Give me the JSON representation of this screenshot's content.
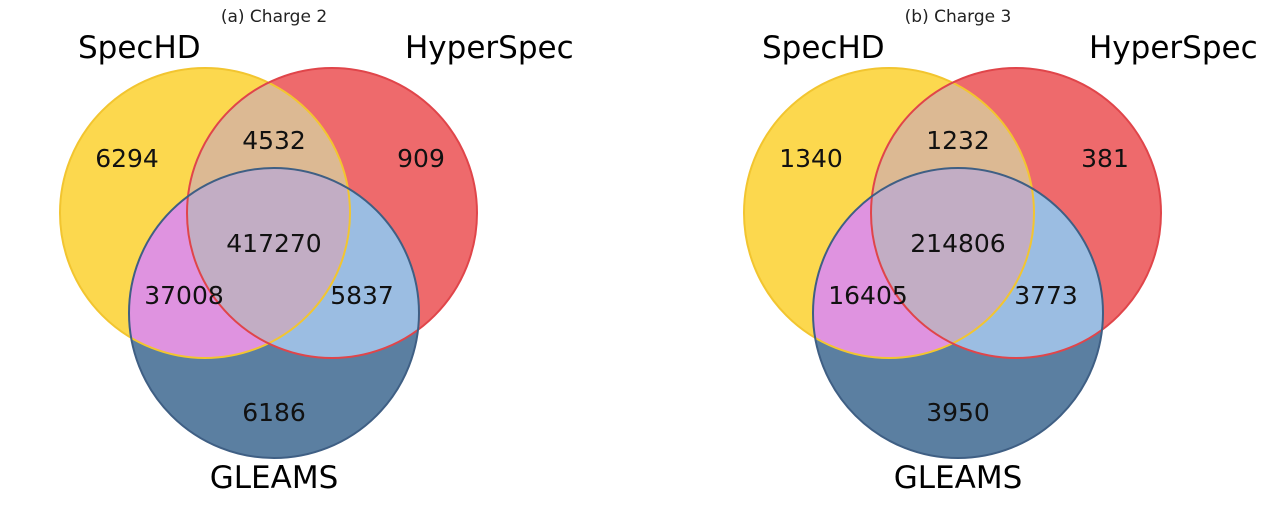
{
  "chart_data": [
    {
      "type": "venn",
      "title": "(a) Charge 2",
      "sets": [
        "SpecHD",
        "HyperSpec",
        "GLEAMS"
      ],
      "regions": {
        "SpecHD_only": 6294,
        "HyperSpec_only": 909,
        "GLEAMS_only": 6186,
        "SpecHD_HyperSpec": 4532,
        "SpecHD_GLEAMS": 37008,
        "HyperSpec_GLEAMS": 5837,
        "all_three": 417270
      },
      "colors": {
        "SpecHD": "#fcd84e",
        "HyperSpec": "#ee6a6c",
        "GLEAMS": "#5b7fa1",
        "SpecHD_HyperSpec": "#dcb993",
        "SpecHD_GLEAMS": "#df93e0",
        "HyperSpec_GLEAMS": "#9bbde2",
        "all_three": "#c2adc4"
      }
    },
    {
      "type": "venn",
      "title": "(b) Charge 3",
      "sets": [
        "SpecHD",
        "HyperSpec",
        "GLEAMS"
      ],
      "regions": {
        "SpecHD_only": 1340,
        "HyperSpec_only": 381,
        "GLEAMS_only": 3950,
        "SpecHD_HyperSpec": 1232,
        "SpecHD_GLEAMS": 16405,
        "HyperSpec_GLEAMS": 3773,
        "all_three": 214806
      },
      "colors": {
        "SpecHD": "#fcd84e",
        "HyperSpec": "#ee6a6c",
        "GLEAMS": "#5b7fa1",
        "SpecHD_HyperSpec": "#dcb993",
        "SpecHD_GLEAMS": "#df93e0",
        "HyperSpec_GLEAMS": "#9bbde2",
        "all_three": "#c2adc4"
      }
    }
  ]
}
